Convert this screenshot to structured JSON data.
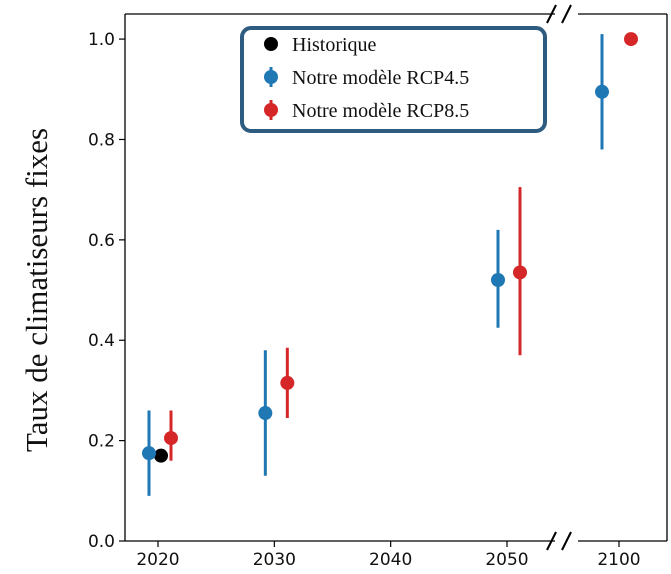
{
  "chart_data": {
    "type": "scatter",
    "ylabel": "Taux de climatiseurs fixes",
    "xlabel": "",
    "ylim": [
      0.0,
      1.05
    ],
    "yticks": [
      0.0,
      0.2,
      0.4,
      0.6,
      0.8,
      1.0
    ],
    "ytick_labels": [
      "0.0",
      "0.2",
      "0.4",
      "0.6",
      "0.8",
      "1.0"
    ],
    "xticks": [
      2020,
      2030,
      2040,
      2050,
      2100
    ],
    "xtick_labels": [
      "2020",
      "2030",
      "2040",
      "2050",
      "2100"
    ],
    "broken_x_axis": true,
    "grid": false,
    "legend_position": "top-center",
    "series": [
      {
        "name": "Historique",
        "color": "#000000",
        "points": [
          {
            "x": 2020,
            "y": 0.17
          }
        ]
      },
      {
        "name": "Notre modèle RCP4.5",
        "color": "#1f77b4",
        "points": [
          {
            "x": 2020,
            "y": 0.175,
            "low": 0.09,
            "high": 0.26
          },
          {
            "x": 2030,
            "y": 0.255,
            "low": 0.13,
            "high": 0.38
          },
          {
            "x": 2050,
            "y": 0.52,
            "low": 0.425,
            "high": 0.62
          },
          {
            "x": 2100,
            "y": 0.895,
            "low": 0.78,
            "high": 1.01
          }
        ]
      },
      {
        "name": "Notre modèle RCP8.5",
        "color": "#d62728",
        "points": [
          {
            "x": 2020,
            "y": 0.205,
            "low": 0.16,
            "high": 0.26
          },
          {
            "x": 2030,
            "y": 0.315,
            "low": 0.245,
            "high": 0.385
          },
          {
            "x": 2050,
            "y": 0.535,
            "low": 0.37,
            "high": 0.705
          },
          {
            "x": 2100,
            "y": 1.0,
            "low": 1.0,
            "high": 1.0
          }
        ]
      }
    ]
  }
}
